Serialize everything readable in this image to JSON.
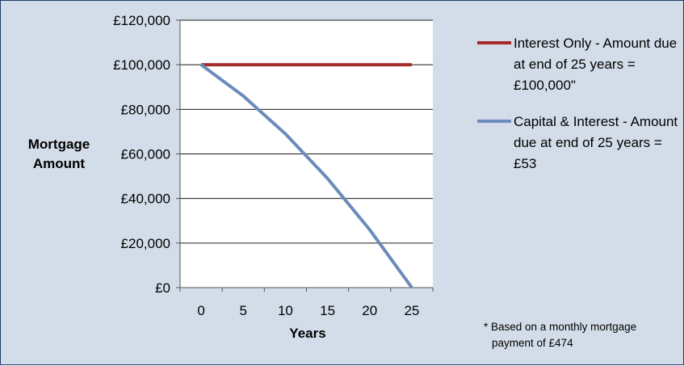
{
  "chart_data": {
    "type": "line",
    "title": "",
    "xlabel": "Years",
    "ylabel": "Mortgage\nAmount",
    "x": [
      0,
      5,
      10,
      15,
      20,
      25
    ],
    "xlim": [
      -2.5,
      27.5
    ],
    "ylim": [
      0,
      120000
    ],
    "x_tick_labels": [
      "0",
      "5",
      "10",
      "15",
      "20",
      "25"
    ],
    "y_tick_labels": [
      "£0",
      "£20,000",
      "£40,000",
      "£60,000",
      "£80,000",
      "£100,000",
      "£120,000"
    ],
    "y_ticks": [
      0,
      20000,
      40000,
      60000,
      80000,
      100000,
      120000
    ],
    "grid": "horizontal",
    "legend_position": "right",
    "series": [
      {
        "name": "Interest Only - Amount due at end of 25 years = £100,000\"",
        "color": "#a52a2a",
        "values": [
          100000,
          100000,
          100000,
          100000,
          100000,
          100000
        ]
      },
      {
        "name": "Capital & Interest - Amount due at end of 25 years = £53",
        "color": "#6b8cba",
        "values": [
          100000,
          86000,
          69000,
          49000,
          26000,
          53
        ]
      }
    ]
  },
  "legend": {
    "items": [
      {
        "label": "Interest Only - Amount due at end of 25 years = £100,000\"",
        "color": "#a52a2a"
      },
      {
        "label": "Capital & Interest - Amount due at end of 25 years = £53",
        "color": "#6b8cba"
      }
    ]
  },
  "footnote": {
    "line1": "* Based on a monthly mortgage",
    "line2": "payment of £474"
  }
}
